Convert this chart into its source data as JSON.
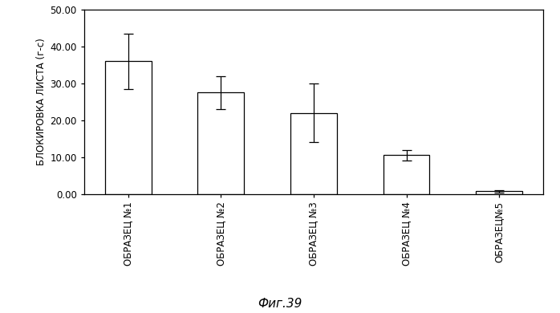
{
  "categories": [
    "ОБРАЗЕЦ №1",
    "ОБРАЗЕЦ №2",
    "ОБРАЗЕЦ №3",
    "ОБРАЗЕЦ №4",
    "ОБРАЗЕЦ№5"
  ],
  "values": [
    36.0,
    27.5,
    22.0,
    10.5,
    0.8
  ],
  "errors": [
    7.5,
    4.5,
    8.0,
    1.5,
    0.35
  ],
  "bar_color": "#ffffff",
  "bar_edgecolor": "#000000",
  "ylabel": "БЛОКИРОВКА ЛИСТА (г-с)",
  "ylim": [
    0,
    50
  ],
  "yticks": [
    0.0,
    10.0,
    20.0,
    30.0,
    40.0,
    50.0
  ],
  "xlabel_fig": "Фиг.39",
  "background_color": "#ffffff",
  "bar_width": 0.5,
  "capsize": 4
}
